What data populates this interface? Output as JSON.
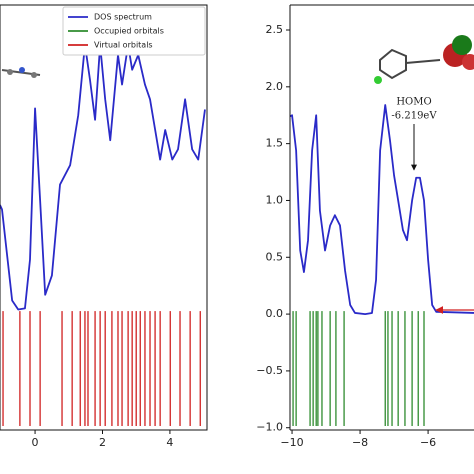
{
  "chart_data": [
    {
      "type": "line",
      "xlim": [
        -1.04,
        5.1
      ],
      "ylim": [
        -1.02,
        2.72
      ],
      "xticks": [
        0,
        2,
        4
      ],
      "legend": "upper right",
      "series": [
        {
          "name": "DOS spectrum",
          "color": "#2a2ac8",
          "x": [
            -1.04,
            -0.98,
            -0.68,
            -0.5,
            -0.3,
            -0.15,
            0,
            0.15,
            0.3,
            0.5,
            0.74,
            1.04,
            1.28,
            1.48,
            1.63,
            1.78,
            1.93,
            2.08,
            2.23,
            2.46,
            2.58,
            2.76,
            2.88,
            3.06,
            3.26,
            3.41,
            3.71,
            3.86,
            4.07,
            4.24,
            4.45,
            4.66,
            4.84,
            5.04
          ],
          "values": [
            0.96,
            0.92,
            0.12,
            0.04,
            0.05,
            0.48,
            1.81,
            1.0,
            0.17,
            0.34,
            1.14,
            1.31,
            1.75,
            2.37,
            2.06,
            1.71,
            2.37,
            1.89,
            1.53,
            2.28,
            2.02,
            2.37,
            2.15,
            2.28,
            2.02,
            1.89,
            1.36,
            1.62,
            1.36,
            1.45,
            1.89,
            1.45,
            1.36,
            1.8
          ]
        }
      ],
      "orbitals": [
        {
          "name": "Occupied orbitals",
          "color": "#2e8b2e",
          "x": []
        },
        {
          "name": "Virtual orbitals",
          "color": "#d02020",
          "x": [
            -0.95,
            -0.45,
            -0.15,
            0.15,
            0.8,
            1.1,
            1.34,
            1.48,
            1.57,
            1.78,
            1.93,
            2.08,
            2.28,
            2.46,
            2.58,
            2.76,
            2.88,
            3.0,
            3.12,
            3.26,
            3.41,
            3.56,
            3.71,
            4.01,
            4.3,
            4.6,
            4.9
          ]
        }
      ]
    },
    {
      "type": "line",
      "xlim": [
        -10.06,
        -4.65
      ],
      "ylim": [
        -1.02,
        2.72
      ],
      "xticks": [
        {
          "value": -10,
          "label": "−10"
        },
        {
          "value": -8,
          "label": "−8"
        },
        {
          "value": -6,
          "label": "−6"
        }
      ],
      "yticks": [
        {
          "value": -1.0,
          "label": "−1.0"
        },
        {
          "value": -0.5,
          "label": "−0.5"
        },
        {
          "value": 0.0,
          "label": "0.0"
        },
        0.5,
        {
          "value": 1.0,
          "label": "1.0"
        },
        1.5,
        {
          "value": 2.0,
          "label": "2.0"
        },
        2.5
      ],
      "annotations": [
        "HOMO",
        "-6.219eV"
      ],
      "series": [
        {
          "color": "#2a2ac8",
          "x": [
            -10.12,
            -10,
            -9.88,
            -9.76,
            -9.65,
            -9.53,
            -9.41,
            -9.29,
            -9.18,
            -9.03,
            -8.88,
            -8.74,
            -8.59,
            -8.44,
            -8.29,
            -8.15,
            -7.85,
            -7.65,
            -7.53,
            -7.41,
            -7.26,
            -7.12,
            -7.0,
            -6.88,
            -6.74,
            -6.62,
            -6.47,
            -6.35,
            -6.24,
            -6.12,
            -6.0,
            -5.88,
            -5.76,
            -4.65
          ],
          "values": [
            1.73,
            1.75,
            1.44,
            0.56,
            0.37,
            0.65,
            1.44,
            1.75,
            0.91,
            0.56,
            0.78,
            0.87,
            0.78,
            0.38,
            0.08,
            0.01,
            0,
            0.01,
            0.3,
            1.44,
            1.84,
            1.53,
            1.22,
            1.0,
            0.74,
            0.65,
            1.0,
            1.2,
            1.2,
            1.0,
            0.48,
            0.08,
            0.02,
            0.01
          ]
        }
      ],
      "orbitals": [
        {
          "color": "#2e8b2e",
          "x": [
            -9.97,
            -9.88,
            -9.47,
            -9.38,
            -9.29,
            -9.24,
            -9.12,
            -8.88,
            -8.71,
            -8.47,
            -7.26,
            -7.18,
            -7.06,
            -6.88,
            -6.68,
            -6.47,
            -6.29,
            -6.12
          ]
        }
      ]
    }
  ]
}
